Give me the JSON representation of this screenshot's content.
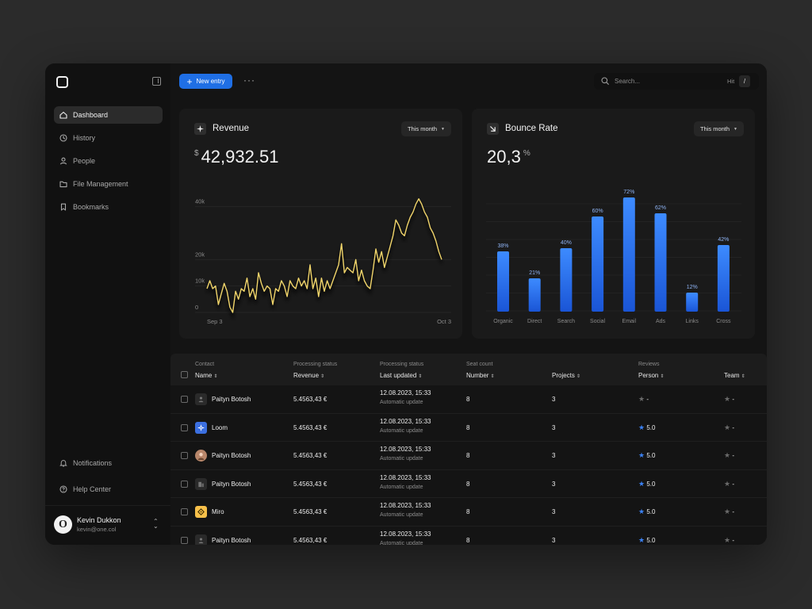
{
  "sidebar": {
    "items": [
      {
        "label": "Dashboard",
        "icon": "home-icon",
        "active": true
      },
      {
        "label": "History",
        "icon": "clock-icon"
      },
      {
        "label": "People",
        "icon": "user-icon"
      },
      {
        "label": "File Management",
        "icon": "folder-icon"
      },
      {
        "label": "Bookmarks",
        "icon": "bookmark-icon"
      }
    ],
    "bottom_items": [
      {
        "label": "Notifications",
        "icon": "bell-icon"
      },
      {
        "label": "Help Center",
        "icon": "help-icon"
      }
    ],
    "user": {
      "name": "Kevin Dukkon",
      "email": "kevin@one.col",
      "avatar_letter": "O"
    }
  },
  "topbar": {
    "new_entry_label": "New entry",
    "more_label": "···",
    "search_placeholder": "Search...",
    "hint_label": "Hit",
    "shortcut_key": "/"
  },
  "revenue": {
    "title": "Revenue",
    "period": "This month",
    "currency": "$",
    "value": "42,932.51"
  },
  "bounce": {
    "title": "Bounce Rate",
    "period": "This month",
    "value": "20,3",
    "unit": "%"
  },
  "chart_data": [
    {
      "type": "line",
      "ylim": [
        0,
        45000
      ],
      "y_ticks": [
        "0",
        "10k",
        "20k",
        "40k"
      ],
      "y_tick_values": [
        0,
        10000,
        20000,
        40000
      ],
      "x_tick_labels": [
        "Sep 3",
        "Oct 3"
      ],
      "grid": true,
      "color": "#f2d66b",
      "y": [
        9000,
        12000,
        9000,
        10000,
        3000,
        7000,
        11000,
        8000,
        2000,
        0,
        8000,
        5000,
        9000,
        8000,
        13000,
        6000,
        9000,
        5000,
        15000,
        11000,
        8000,
        10000,
        9000,
        3000,
        9000,
        8000,
        12000,
        10000,
        6000,
        12000,
        10000,
        9000,
        13000,
        10000,
        12000,
        9000,
        18000,
        9000,
        13000,
        6000,
        13000,
        8000,
        12000,
        9000,
        12000,
        15000,
        18000,
        26000,
        15000,
        17000,
        16000,
        15000,
        20000,
        12000,
        16000,
        12000,
        10000,
        9000,
        16000,
        24000,
        19000,
        23000,
        17000,
        21000,
        25000,
        29000,
        35000,
        33000,
        30000,
        29000,
        33000,
        36000,
        38000,
        41000,
        43000,
        41000,
        38000,
        36000,
        32000,
        30000,
        27000,
        23000,
        20000
      ]
    },
    {
      "type": "bar",
      "categories": [
        "Organic",
        "Direct",
        "Search",
        "Social",
        "Email",
        "Ads",
        "Links",
        "Cross"
      ],
      "values": [
        38,
        21,
        40,
        60,
        72,
        62,
        12,
        42
      ],
      "labels": [
        "38%",
        "21%",
        "40%",
        "60%",
        "72%",
        "62%",
        "12%",
        "42%"
      ],
      "ylim": [
        0,
        80
      ],
      "grid": true,
      "color": "#2e7bf0"
    }
  ],
  "table": {
    "headers": [
      {
        "group": "Contact",
        "label": "Name"
      },
      {
        "group": "Processing status",
        "label": "Revenue"
      },
      {
        "group": "Processing status",
        "label": "Last updated"
      },
      {
        "group": "Seat count",
        "label": "Number"
      },
      {
        "group": "",
        "label": "Projects"
      },
      {
        "group": "Reviews",
        "label": "Person"
      },
      {
        "group": "",
        "label": "Team"
      }
    ],
    "sort_glyph": "⇕",
    "rows": [
      {
        "name": "Paityn Botosh",
        "icon": "person-placeholder-icon",
        "revenue": "5.4563,43 €",
        "date": "12.08.2023, 15:33",
        "status": "Automatic update",
        "number": "8",
        "projects": "3",
        "person": "-",
        "person_star": "grey",
        "team": "-"
      },
      {
        "name": "Loom",
        "icon": "loom-logo-icon",
        "revenue": "5.4563,43 €",
        "date": "12.08.2023, 15:33",
        "status": "Automatic update",
        "number": "8",
        "projects": "3",
        "person": "5.0",
        "person_star": "blue",
        "team": "-"
      },
      {
        "name": "Paityn Botosh",
        "icon": "person-photo-icon",
        "revenue": "5.4563,43 €",
        "date": "12.08.2023, 15:33",
        "status": "Automatic update",
        "number": "8",
        "projects": "3",
        "person": "5.0",
        "person_star": "blue",
        "team": "-"
      },
      {
        "name": "Paityn Botosh",
        "icon": "building-icon",
        "revenue": "5.4563,43 €",
        "date": "12.08.2023, 15:33",
        "status": "Automatic update",
        "number": "8",
        "projects": "3",
        "person": "5.0",
        "person_star": "blue",
        "team": "-"
      },
      {
        "name": "Miro",
        "icon": "miro-logo-icon",
        "revenue": "5.4563,43 €",
        "date": "12.08.2023, 15:33",
        "status": "Automatic update",
        "number": "8",
        "projects": "3",
        "person": "5.0",
        "person_star": "blue",
        "team": "-"
      },
      {
        "name": "Paityn Botosh",
        "icon": "person-placeholder-icon",
        "revenue": "5.4563,43 €",
        "date": "12.08.2023, 15:33",
        "status": "Automatic update",
        "number": "8",
        "projects": "3",
        "person": "5.0",
        "person_star": "blue",
        "team": "-"
      }
    ]
  },
  "colors": {
    "accent": "#1f6fe5",
    "line": "#f2d66b",
    "bar": "#2e7bf0",
    "star_blue": "#3b82f6",
    "star_grey": "#6b6b6b",
    "background": "#111111"
  }
}
